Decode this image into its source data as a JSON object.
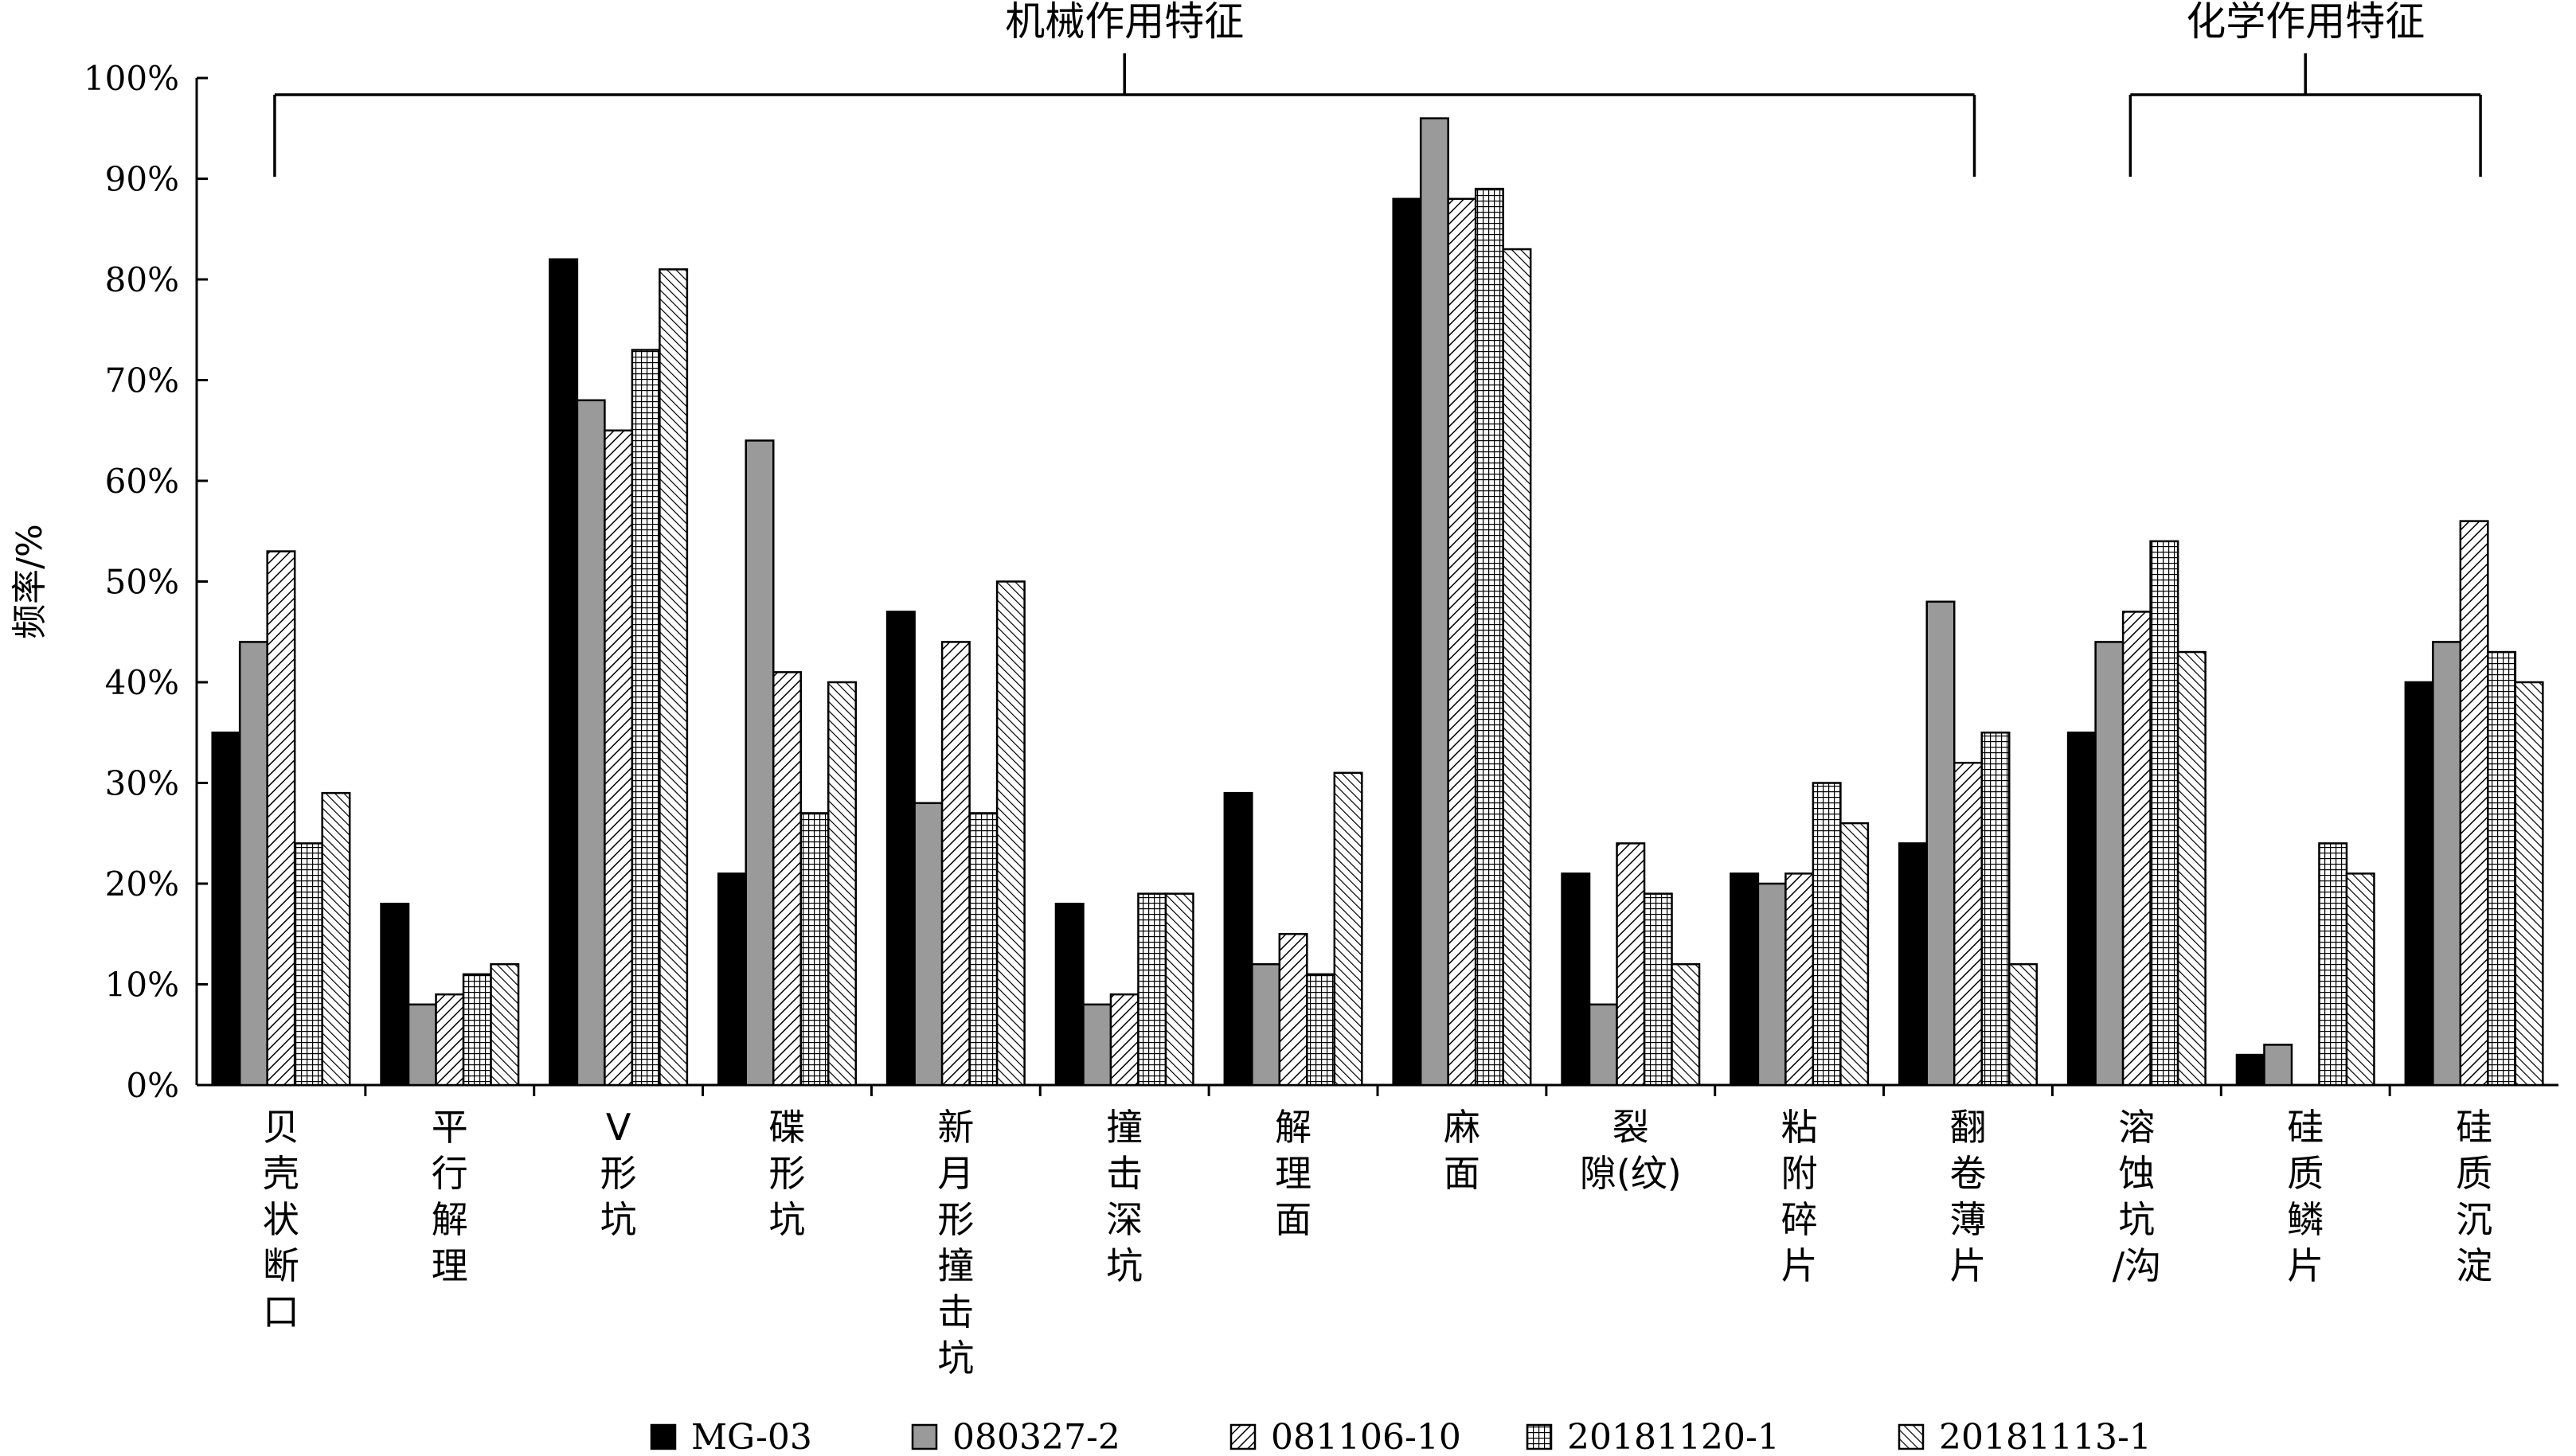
{
  "chart_data": {
    "type": "bar",
    "ylabel": "频率/%",
    "ylim": [
      0,
      100
    ],
    "yticks": [
      "0%",
      "10%",
      "20%",
      "30%",
      "40%",
      "50%",
      "60%",
      "70%",
      "80%",
      "90%",
      "100%"
    ],
    "grid": false,
    "legend_position": "bottom",
    "categories": [
      [
        "贝",
        "壳",
        "状",
        "断",
        "口"
      ],
      [
        "平",
        "行",
        "解",
        "理"
      ],
      [
        "V",
        "形",
        "坑"
      ],
      [
        "碟",
        "形",
        "坑"
      ],
      [
        "新",
        "月",
        "形",
        "撞",
        "击",
        "坑"
      ],
      [
        "撞",
        "击",
        "深",
        "坑"
      ],
      [
        "解",
        "理",
        "面"
      ],
      [
        "麻",
        "面"
      ],
      [
        "裂",
        "隙(纹)"
      ],
      [
        "粘",
        "附",
        "碎",
        "片"
      ],
      [
        "翻",
        "卷",
        "薄",
        "片"
      ],
      [
        "溶",
        "蚀",
        "坑",
        "/沟"
      ],
      [
        "硅",
        "质",
        "鳞",
        "片"
      ],
      [
        "硅",
        "质",
        "沉",
        "淀"
      ]
    ],
    "series": [
      {
        "name": "MG-03",
        "values": [
          35,
          18,
          82,
          21,
          47,
          18,
          29,
          88,
          21,
          21,
          24,
          35,
          3,
          40
        ],
        "pattern": "solid"
      },
      {
        "name": "080327-2",
        "values": [
          44,
          8,
          68,
          64,
          28,
          8,
          12,
          96,
          8,
          20,
          48,
          44,
          4,
          44
        ],
        "pattern": "gray"
      },
      {
        "name": "081106-10",
        "values": [
          53,
          9,
          65,
          41,
          44,
          9,
          15,
          88,
          24,
          21,
          32,
          47,
          0,
          56
        ],
        "pattern": "diag"
      },
      {
        "name": "20181120-1",
        "values": [
          24,
          11,
          73,
          27,
          27,
          19,
          11,
          89,
          19,
          30,
          35,
          54,
          24,
          43
        ],
        "pattern": "grid"
      },
      {
        "name": "20181113-1",
        "values": [
          29,
          12,
          81,
          40,
          50,
          19,
          31,
          83,
          12,
          26,
          12,
          43,
          21,
          40
        ],
        "pattern": "diag2"
      }
    ],
    "groups": [
      {
        "label": "机械作用特征",
        "from_category": 0,
        "to_category": 10
      },
      {
        "label": "化学作用特征",
        "from_category": 11,
        "to_category": 13
      }
    ]
  }
}
